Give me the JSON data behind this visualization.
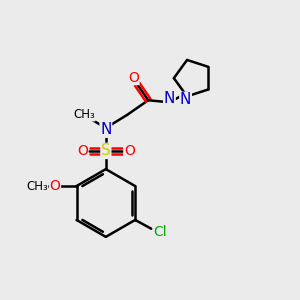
{
  "bg_color": "#ebebeb",
  "bond_color": "#000000",
  "bond_width": 1.8,
  "atom_colors": {
    "O": "#ff0000",
    "N": "#0000cc",
    "S": "#cccc00",
    "Cl": "#00aa00",
    "C": "#000000"
  },
  "font_size": 10
}
